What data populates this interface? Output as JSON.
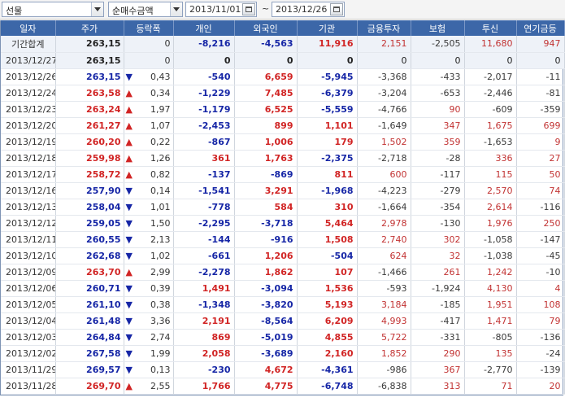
{
  "toolbar": {
    "market": "선물",
    "metric": "순매수금액",
    "date_from": "2013/11/01",
    "date_to": "2013/12/26",
    "separator": "~"
  },
  "columns": [
    "일자",
    "주가",
    "등락폭",
    "개인",
    "외국인",
    "기관",
    "금융투자",
    "보험",
    "투신",
    "연기금등"
  ],
  "rows": [
    {
      "date": "기간합계",
      "price": "263,15",
      "dir": "",
      "chg": "0",
      "ind": "-8,216",
      "for": "-4,563",
      "inst": "11,916",
      "fin": "2,151",
      "ins": "-2,505",
      "trust": "11,680",
      "pen": "947"
    },
    {
      "date": "2013/12/27",
      "price": "263,15",
      "dir": "",
      "chg": "0",
      "ind": "0",
      "for": "0",
      "inst": "0",
      "fin": "0",
      "ins": "0",
      "trust": "0",
      "pen": "0"
    },
    {
      "date": "2013/12/26",
      "price": "263,15",
      "dir": "down",
      "chg": "0,43",
      "ind": "-540",
      "for": "6,659",
      "inst": "-5,945",
      "fin": "-3,368",
      "ins": "-433",
      "trust": "-2,017",
      "pen": "-11"
    },
    {
      "date": "2013/12/24",
      "price": "263,58",
      "dir": "up",
      "chg": "0,34",
      "ind": "-1,229",
      "for": "7,485",
      "inst": "-6,379",
      "fin": "-3,204",
      "ins": "-653",
      "trust": "-2,446",
      "pen": "-81"
    },
    {
      "date": "2013/12/23",
      "price": "263,24",
      "dir": "up",
      "chg": "1,97",
      "ind": "-1,179",
      "for": "6,525",
      "inst": "-5,559",
      "fin": "-4,766",
      "ins": "90",
      "trust": "-609",
      "pen": "-359"
    },
    {
      "date": "2013/12/20",
      "price": "261,27",
      "dir": "up",
      "chg": "1,07",
      "ind": "-2,453",
      "for": "899",
      "inst": "1,101",
      "fin": "-1,649",
      "ins": "347",
      "trust": "1,675",
      "pen": "699"
    },
    {
      "date": "2013/12/19",
      "price": "260,20",
      "dir": "up",
      "chg": "0,22",
      "ind": "-867",
      "for": "1,006",
      "inst": "179",
      "fin": "1,502",
      "ins": "359",
      "trust": "-1,653",
      "pen": "9"
    },
    {
      "date": "2013/12/18",
      "price": "259,98",
      "dir": "up",
      "chg": "1,26",
      "ind": "361",
      "for": "1,763",
      "inst": "-2,375",
      "fin": "-2,718",
      "ins": "-28",
      "trust": "336",
      "pen": "27"
    },
    {
      "date": "2013/12/17",
      "price": "258,72",
      "dir": "up",
      "chg": "0,82",
      "ind": "-137",
      "for": "-869",
      "inst": "811",
      "fin": "600",
      "ins": "-117",
      "trust": "115",
      "pen": "50"
    },
    {
      "date": "2013/12/16",
      "price": "257,90",
      "dir": "down",
      "chg": "0,14",
      "ind": "-1,541",
      "for": "3,291",
      "inst": "-1,968",
      "fin": "-4,223",
      "ins": "-279",
      "trust": "2,570",
      "pen": "74"
    },
    {
      "date": "2013/12/13",
      "price": "258,04",
      "dir": "down",
      "chg": "1,01",
      "ind": "-778",
      "for": "584",
      "inst": "310",
      "fin": "-1,664",
      "ins": "-354",
      "trust": "2,614",
      "pen": "-116"
    },
    {
      "date": "2013/12/12",
      "price": "259,05",
      "dir": "down",
      "chg": "1,50",
      "ind": "-2,295",
      "for": "-3,718",
      "inst": "5,464",
      "fin": "2,978",
      "ins": "-130",
      "trust": "1,976",
      "pen": "250"
    },
    {
      "date": "2013/12/11",
      "price": "260,55",
      "dir": "down",
      "chg": "2,13",
      "ind": "-144",
      "for": "-916",
      "inst": "1,508",
      "fin": "2,740",
      "ins": "302",
      "trust": "-1,058",
      "pen": "-147"
    },
    {
      "date": "2013/12/10",
      "price": "262,68",
      "dir": "down",
      "chg": "1,02",
      "ind": "-661",
      "for": "1,206",
      "inst": "-504",
      "fin": "624",
      "ins": "32",
      "trust": "-1,038",
      "pen": "-45"
    },
    {
      "date": "2013/12/09",
      "price": "263,70",
      "dir": "up",
      "chg": "2,99",
      "ind": "-2,278",
      "for": "1,862",
      "inst": "107",
      "fin": "-1,466",
      "ins": "261",
      "trust": "1,242",
      "pen": "-10"
    },
    {
      "date": "2013/12/06",
      "price": "260,71",
      "dir": "down",
      "chg": "0,39",
      "ind": "1,491",
      "for": "-3,094",
      "inst": "1,536",
      "fin": "-593",
      "ins": "-1,924",
      "trust": "4,130",
      "pen": "4"
    },
    {
      "date": "2013/12/05",
      "price": "261,10",
      "dir": "down",
      "chg": "0,38",
      "ind": "-1,348",
      "for": "-3,820",
      "inst": "5,193",
      "fin": "3,184",
      "ins": "-185",
      "trust": "1,951",
      "pen": "108"
    },
    {
      "date": "2013/12/04",
      "price": "261,48",
      "dir": "down",
      "chg": "3,36",
      "ind": "2,191",
      "for": "-8,564",
      "inst": "6,209",
      "fin": "4,993",
      "ins": "-417",
      "trust": "1,471",
      "pen": "79"
    },
    {
      "date": "2013/12/03",
      "price": "264,84",
      "dir": "down",
      "chg": "2,74",
      "ind": "869",
      "for": "-5,019",
      "inst": "4,855",
      "fin": "5,722",
      "ins": "-331",
      "trust": "-805",
      "pen": "-136"
    },
    {
      "date": "2013/12/02",
      "price": "267,58",
      "dir": "down",
      "chg": "1,99",
      "ind": "2,058",
      "for": "-3,689",
      "inst": "2,160",
      "fin": "1,852",
      "ins": "290",
      "trust": "135",
      "pen": "-24"
    },
    {
      "date": "2013/11/29",
      "price": "269,57",
      "dir": "down",
      "chg": "0,13",
      "ind": "-230",
      "for": "4,672",
      "inst": "-4,361",
      "fin": "-986",
      "ins": "367",
      "trust": "-2,770",
      "pen": "-139"
    },
    {
      "date": "2013/11/28",
      "price": "269,70",
      "dir": "up",
      "chg": "2,55",
      "ind": "1,766",
      "for": "4,775",
      "inst": "-6,748",
      "fin": "-6,838",
      "ins": "313",
      "trust": "71",
      "pen": "20"
    }
  ],
  "colors": {
    "header_bg": "#3c67a8",
    "up": "#d12424",
    "down": "#1626a6",
    "summary_bg": "#eef2f8"
  }
}
